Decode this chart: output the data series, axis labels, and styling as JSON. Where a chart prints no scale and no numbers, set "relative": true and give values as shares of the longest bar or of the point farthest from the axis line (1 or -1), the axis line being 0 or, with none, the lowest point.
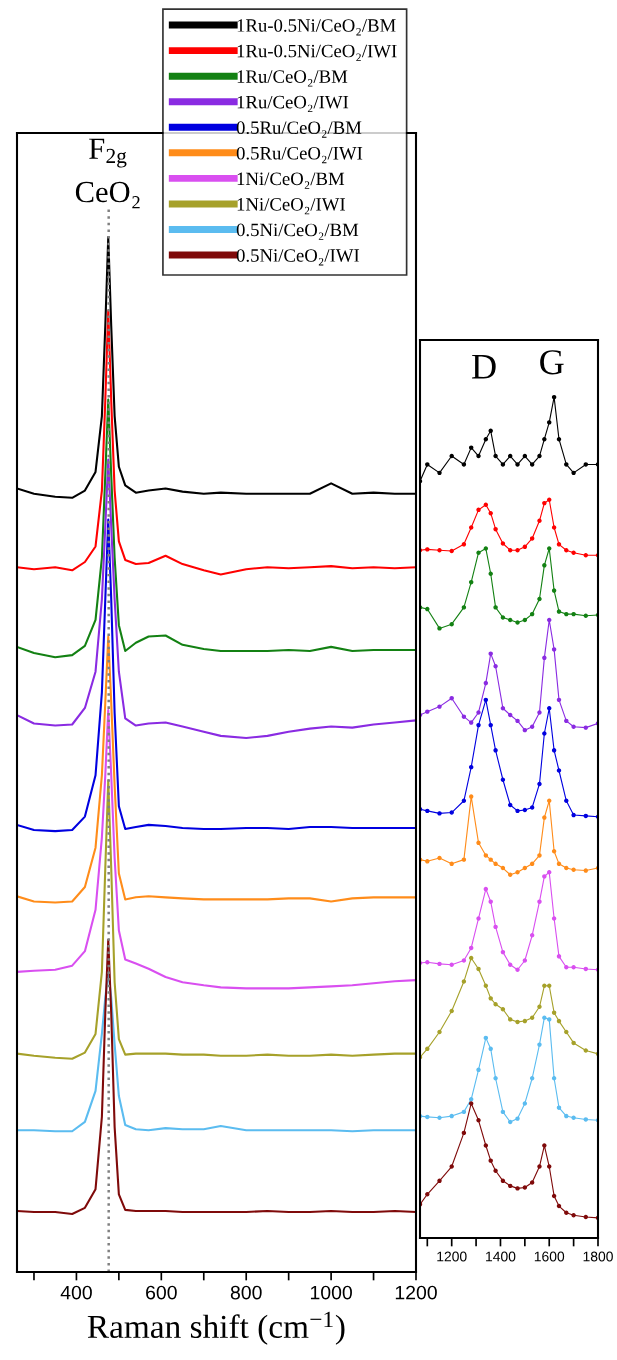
{
  "chart_data": [
    {
      "type": "line",
      "relative": true,
      "xlabel": "Raman shift (cm$^{−1}$)",
      "legend": "top right",
      "x": [
        260,
        300,
        350,
        390,
        420,
        445,
        460,
        468,
        475,
        482,
        490,
        500,
        515,
        540,
        570,
        610,
        650,
        700,
        740,
        800,
        850,
        900,
        950,
        1000,
        1050,
        1100,
        1150,
        1200
      ],
      "xlim": [
        260,
        1200
      ],
      "xticks": [
        {
          "value": 300,
          "label": null
        },
        400,
        {
          "value": 500,
          "label": null
        },
        600,
        {
          "value": 700,
          "label": null
        },
        800,
        {
          "value": 900,
          "label": null
        },
        1000,
        {
          "value": 1100,
          "label": null
        },
        1200
      ],
      "annotations": [
        "F$_{2g}$",
        "CeO₂"
      ],
      "ref_lines": [
        {
          "axis": "x",
          "value": 476,
          "color": "#808080",
          "line_style": "dotted"
        }
      ],
      "series": [
        {
          "name": "1Ru-0.5Ni/CeO₂/BM",
          "color": "#000000",
          "values": [
            0.757,
            0.752,
            0.749,
            0.748,
            0.755,
            0.773,
            0.827,
            0.914,
            1.0,
            0.914,
            0.827,
            0.778,
            0.76,
            0.753,
            0.755,
            0.757,
            0.754,
            0.752,
            0.753,
            0.752,
            0.752,
            0.752,
            0.752,
            0.762,
            0.752,
            0.753,
            0.752,
            0.752
          ]
        },
        {
          "name": "1Ru-0.5Ni/CeO₂/IWI",
          "color": "#ff0000",
          "values": [
            0.681,
            0.679,
            0.681,
            0.678,
            0.686,
            0.701,
            0.755,
            0.842,
            0.929,
            0.842,
            0.755,
            0.706,
            0.688,
            0.684,
            0.685,
            0.692,
            0.684,
            0.678,
            0.674,
            0.679,
            0.681,
            0.68,
            0.681,
            0.682,
            0.68,
            0.681,
            0.68,
            0.681
          ]
        },
        {
          "name": "1Ru/CeO₂/BM",
          "color": "#138113",
          "values": [
            0.604,
            0.598,
            0.594,
            0.596,
            0.605,
            0.63,
            0.69,
            0.77,
            0.843,
            0.77,
            0.69,
            0.625,
            0.6,
            0.608,
            0.614,
            0.615,
            0.606,
            0.602,
            0.6,
            0.6,
            0.6,
            0.601,
            0.6,
            0.604,
            0.6,
            0.601,
            0.601,
            0.601
          ]
        },
        {
          "name": "1Ru/CeO₂/IWI",
          "color": "#8a2be2",
          "values": [
            0.538,
            0.53,
            0.528,
            0.529,
            0.545,
            0.58,
            0.65,
            0.72,
            0.785,
            0.72,
            0.65,
            0.58,
            0.535,
            0.528,
            0.53,
            0.531,
            0.527,
            0.522,
            0.518,
            0.516,
            0.518,
            0.522,
            0.525,
            0.527,
            0.526,
            0.529,
            0.531,
            0.533
          ]
        },
        {
          "name": "0.5Ru/CeO₂/BM",
          "color": "#0000e0",
          "values": [
            0.432,
            0.427,
            0.426,
            0.427,
            0.44,
            0.48,
            0.56,
            0.65,
            0.727,
            0.65,
            0.54,
            0.45,
            0.428,
            0.43,
            0.432,
            0.431,
            0.429,
            0.428,
            0.428,
            0.429,
            0.429,
            0.428,
            0.43,
            0.43,
            0.429,
            0.429,
            0.429,
            0.429
          ]
        },
        {
          "name": "0.5Ru/CeO₂/IWI",
          "color": "#ff8c1a",
          "values": [
            0.363,
            0.358,
            0.357,
            0.358,
            0.372,
            0.41,
            0.48,
            0.55,
            0.614,
            0.55,
            0.47,
            0.385,
            0.36,
            0.362,
            0.363,
            0.362,
            0.361,
            0.36,
            0.36,
            0.36,
            0.36,
            0.361,
            0.361,
            0.358,
            0.361,
            0.362,
            0.362,
            0.362
          ]
        },
        {
          "name": "1Ni/CeO₂/BM",
          "color": "#d94ff0",
          "values": [
            0.29,
            0.291,
            0.292,
            0.296,
            0.31,
            0.35,
            0.42,
            0.48,
            0.543,
            0.48,
            0.4,
            0.33,
            0.302,
            0.298,
            0.293,
            0.285,
            0.28,
            0.277,
            0.275,
            0.274,
            0.274,
            0.274,
            0.275,
            0.276,
            0.277,
            0.279,
            0.281,
            0.282
          ]
        },
        {
          "name": "1Ni/CeO₂/IWI",
          "color": "#a6a12a",
          "values": [
            0.211,
            0.209,
            0.207,
            0.206,
            0.212,
            0.23,
            0.29,
            0.39,
            0.475,
            0.39,
            0.28,
            0.225,
            0.21,
            0.211,
            0.211,
            0.211,
            0.21,
            0.21,
            0.209,
            0.209,
            0.21,
            0.209,
            0.209,
            0.21,
            0.209,
            0.21,
            0.211,
            0.211
          ]
        },
        {
          "name": "0.5Ni/CeO₂/BM",
          "color": "#5bbcf0",
          "values": [
            0.137,
            0.137,
            0.136,
            0.136,
            0.145,
            0.175,
            0.23,
            0.265,
            0.29,
            0.265,
            0.22,
            0.17,
            0.142,
            0.138,
            0.137,
            0.139,
            0.138,
            0.138,
            0.141,
            0.137,
            0.137,
            0.137,
            0.137,
            0.137,
            0.136,
            0.137,
            0.137,
            0.137
          ]
        },
        {
          "name": "0.5Ni/CeO₂/IWI",
          "color": "#7f0a0a",
          "values": [
            0.059,
            0.058,
            0.058,
            0.056,
            0.062,
            0.08,
            0.15,
            0.25,
            0.321,
            0.25,
            0.14,
            0.075,
            0.06,
            0.059,
            0.059,
            0.059,
            0.058,
            0.058,
            0.058,
            0.058,
            0.059,
            0.058,
            0.058,
            0.059,
            0.058,
            0.058,
            0.059,
            0.058
          ]
        }
      ]
    },
    {
      "type": "line",
      "relative": true,
      "marker": "circle",
      "x": [
        1070,
        1100,
        1150,
        1200,
        1250,
        1280,
        1310,
        1340,
        1360,
        1380,
        1410,
        1440,
        1470,
        1500,
        1530,
        1560,
        1580,
        1600,
        1620,
        1640,
        1670,
        1700,
        1750,
        1800
      ],
      "xlim": [
        1070,
        1800
      ],
      "xticks": [
        {
          "value": 1100,
          "label": null
        },
        1200,
        {
          "value": 1300,
          "label": null
        },
        1400,
        {
          "value": 1500,
          "label": null
        },
        1600,
        {
          "value": 1700,
          "label": null
        },
        1800
      ],
      "annotations": [
        "D",
        "G"
      ],
      "series": [
        {
          "color": "#000000",
          "values": [
            0.9,
            0.92,
            0.91,
            0.93,
            0.92,
            0.94,
            0.93,
            0.95,
            0.96,
            0.93,
            0.92,
            0.93,
            0.92,
            0.93,
            0.92,
            0.93,
            0.95,
            0.97,
            1.0,
            0.95,
            0.92,
            0.91,
            0.92,
            0.92
          ]
        },
        {
          "color": "#ff0000",
          "values": [
            0.818,
            0.819,
            0.818,
            0.817,
            0.825,
            0.845,
            0.866,
            0.872,
            0.862,
            0.843,
            0.826,
            0.818,
            0.818,
            0.822,
            0.832,
            0.853,
            0.874,
            0.878,
            0.845,
            0.825,
            0.818,
            0.815,
            0.812,
            0.812
          ]
        },
        {
          "color": "#138113",
          "values": [
            0.75,
            0.748,
            0.725,
            0.73,
            0.75,
            0.78,
            0.815,
            0.82,
            0.79,
            0.75,
            0.738,
            0.735,
            0.732,
            0.735,
            0.742,
            0.76,
            0.8,
            0.82,
            0.77,
            0.745,
            0.742,
            0.742,
            0.74,
            0.741
          ]
        },
        {
          "color": "#8a2be2",
          "values": [
            0.622,
            0.626,
            0.632,
            0.642,
            0.62,
            0.613,
            0.625,
            0.66,
            0.695,
            0.68,
            0.63,
            0.622,
            0.615,
            0.604,
            0.608,
            0.625,
            0.69,
            0.735,
            0.7,
            0.64,
            0.615,
            0.608,
            0.607,
            0.612
          ]
        },
        {
          "color": "#0000e0",
          "values": [
            0.51,
            0.508,
            0.505,
            0.506,
            0.52,
            0.56,
            0.61,
            0.64,
            0.61,
            0.58,
            0.545,
            0.515,
            0.508,
            0.509,
            0.512,
            0.54,
            0.6,
            0.63,
            0.58,
            0.556,
            0.52,
            0.503,
            0.502,
            0.501
          ]
        },
        {
          "color": "#ff8c1a",
          "values": [
            0.45,
            0.448,
            0.452,
            0.445,
            0.45,
            0.525,
            0.47,
            0.455,
            0.45,
            0.445,
            0.44,
            0.432,
            0.435,
            0.44,
            0.445,
            0.455,
            0.5,
            0.52,
            0.46,
            0.445,
            0.44,
            0.438,
            0.437,
            0.44
          ]
        },
        {
          "color": "#d94ff0",
          "values": [
            0.327,
            0.328,
            0.326,
            0.325,
            0.33,
            0.345,
            0.38,
            0.415,
            0.4,
            0.37,
            0.34,
            0.325,
            0.319,
            0.33,
            0.36,
            0.4,
            0.43,
            0.435,
            0.38,
            0.335,
            0.322,
            0.322,
            0.32,
            0.319
          ]
        },
        {
          "color": "#a6a12a",
          "values": [
            0.215,
            0.225,
            0.245,
            0.27,
            0.305,
            0.333,
            0.32,
            0.3,
            0.285,
            0.278,
            0.272,
            0.26,
            0.257,
            0.258,
            0.262,
            0.275,
            0.3,
            0.3,
            0.268,
            0.258,
            0.245,
            0.232,
            0.223,
            0.219
          ]
        },
        {
          "color": "#5bbcf0",
          "values": [
            0.145,
            0.144,
            0.143,
            0.145,
            0.15,
            0.165,
            0.2,
            0.238,
            0.225,
            0.19,
            0.15,
            0.138,
            0.142,
            0.16,
            0.19,
            0.23,
            0.262,
            0.26,
            0.19,
            0.155,
            0.145,
            0.143,
            0.141,
            0.14
          ]
        },
        {
          "color": "#7f0a0a",
          "values": [
            0.04,
            0.052,
            0.068,
            0.085,
            0.125,
            0.16,
            0.14,
            0.11,
            0.092,
            0.08,
            0.068,
            0.062,
            0.059,
            0.06,
            0.066,
            0.085,
            0.11,
            0.085,
            0.05,
            0.038,
            0.03,
            0.027,
            0.025,
            0.024
          ]
        }
      ]
    }
  ]
}
